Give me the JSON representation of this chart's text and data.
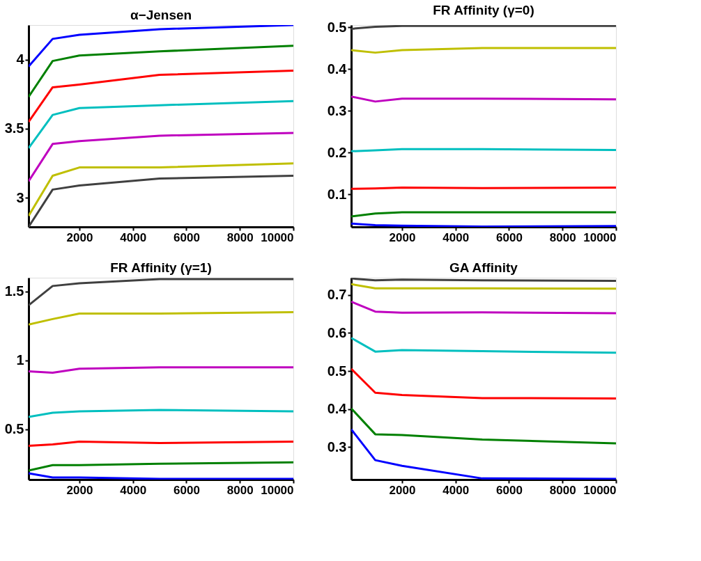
{
  "chart_data": [
    {
      "type": "line",
      "title": "α−Jensen",
      "x": [
        100,
        1000,
        2000,
        5000,
        10000
      ],
      "xlim": [
        100,
        10000
      ],
      "xticks": [
        2000,
        4000,
        6000,
        8000,
        10000
      ],
      "ylim": [
        2.79,
        4.25
      ],
      "yticks": [
        3,
        3.5,
        4
      ],
      "grid": false,
      "legend": false,
      "series": [
        {
          "color": "#0000ff",
          "values": [
            3.95,
            4.15,
            4.18,
            4.22,
            4.25
          ]
        },
        {
          "color": "#008000",
          "values": [
            3.73,
            3.99,
            4.03,
            4.06,
            4.1
          ]
        },
        {
          "color": "#ff0000",
          "values": [
            3.55,
            3.8,
            3.82,
            3.89,
            3.92
          ]
        },
        {
          "color": "#00bfbf",
          "values": [
            3.36,
            3.6,
            3.65,
            3.67,
            3.7
          ]
        },
        {
          "color": "#bf00bf",
          "values": [
            3.12,
            3.39,
            3.41,
            3.45,
            3.47
          ]
        },
        {
          "color": "#bfbf00",
          "values": [
            2.87,
            3.16,
            3.22,
            3.22,
            3.25
          ]
        },
        {
          "color": "#404040",
          "values": [
            2.79,
            3.06,
            3.09,
            3.14,
            3.16
          ]
        }
      ]
    },
    {
      "type": "line",
      "title": "FR Affinity (γ=0)",
      "x": [
        100,
        1000,
        2000,
        5000,
        10000
      ],
      "xlim": [
        100,
        10000
      ],
      "xticks": [
        2000,
        4000,
        6000,
        8000,
        10000
      ],
      "ylim": [
        0.022,
        0.505
      ],
      "yticks": [
        0.1,
        0.2,
        0.3,
        0.4,
        0.5
      ],
      "grid": false,
      "legend": false,
      "series": [
        {
          "color": "#0000ff",
          "values": [
            0.03,
            0.026,
            0.025,
            0.023,
            0.024
          ]
        },
        {
          "color": "#008000",
          "values": [
            0.047,
            0.054,
            0.057,
            0.057,
            0.057
          ]
        },
        {
          "color": "#ff0000",
          "values": [
            0.113,
            0.114,
            0.116,
            0.115,
            0.116
          ]
        },
        {
          "color": "#00bfbf",
          "values": [
            0.203,
            0.205,
            0.208,
            0.208,
            0.206
          ]
        },
        {
          "color": "#bf00bf",
          "values": [
            0.334,
            0.322,
            0.329,
            0.329,
            0.327
          ]
        },
        {
          "color": "#bfbf00",
          "values": [
            0.445,
            0.439,
            0.445,
            0.45,
            0.45
          ]
        },
        {
          "color": "#404040",
          "values": [
            0.496,
            0.501,
            0.503,
            0.503,
            0.503
          ]
        }
      ]
    },
    {
      "type": "line",
      "title": "FR Affinity (γ=1)",
      "x": [
        100,
        1000,
        2000,
        5000,
        10000
      ],
      "xlim": [
        100,
        10000
      ],
      "xticks": [
        2000,
        4000,
        6000,
        8000,
        10000
      ],
      "ylim": [
        0.135,
        1.6
      ],
      "yticks": [
        0.5,
        1,
        1.5
      ],
      "grid": false,
      "legend": false,
      "series": [
        {
          "color": "#0000ff",
          "values": [
            0.18,
            0.15,
            0.15,
            0.14,
            0.14
          ]
        },
        {
          "color": "#008000",
          "values": [
            0.2,
            0.24,
            0.24,
            0.25,
            0.26
          ]
        },
        {
          "color": "#ff0000",
          "values": [
            0.38,
            0.39,
            0.41,
            0.4,
            0.41
          ]
        },
        {
          "color": "#00bfbf",
          "values": [
            0.59,
            0.62,
            0.63,
            0.64,
            0.63
          ]
        },
        {
          "color": "#bf00bf",
          "values": [
            0.92,
            0.91,
            0.94,
            0.95,
            0.95
          ]
        },
        {
          "color": "#bfbf00",
          "values": [
            1.26,
            1.3,
            1.34,
            1.34,
            1.35
          ]
        },
        {
          "color": "#404040",
          "values": [
            1.4,
            1.54,
            1.56,
            1.59,
            1.59
          ]
        }
      ]
    },
    {
      "type": "line",
      "title": "GA Affinity",
      "x": [
        100,
        1000,
        2000,
        5000,
        10000
      ],
      "xlim": [
        100,
        10000
      ],
      "xticks": [
        2000,
        4000,
        6000,
        8000,
        10000
      ],
      "ylim": [
        0.215,
        0.745
      ],
      "yticks": [
        0.3,
        0.4,
        0.5,
        0.6,
        0.7
      ],
      "grid": false,
      "legend": false,
      "series": [
        {
          "color": "#0000ff",
          "values": [
            0.347,
            0.266,
            0.251,
            0.218,
            0.217
          ]
        },
        {
          "color": "#008000",
          "values": [
            0.402,
            0.334,
            0.332,
            0.32,
            0.31
          ]
        },
        {
          "color": "#ff0000",
          "values": [
            0.506,
            0.443,
            0.437,
            0.429,
            0.428
          ]
        },
        {
          "color": "#00bfbf",
          "values": [
            0.587,
            0.551,
            0.555,
            0.552,
            0.548
          ]
        },
        {
          "color": "#bf00bf",
          "values": [
            0.682,
            0.656,
            0.653,
            0.654,
            0.652
          ]
        },
        {
          "color": "#bfbf00",
          "values": [
            0.728,
            0.717,
            0.717,
            0.717,
            0.716
          ]
        },
        {
          "color": "#404040",
          "values": [
            0.743,
            0.738,
            0.74,
            0.738,
            0.737
          ]
        }
      ]
    }
  ]
}
